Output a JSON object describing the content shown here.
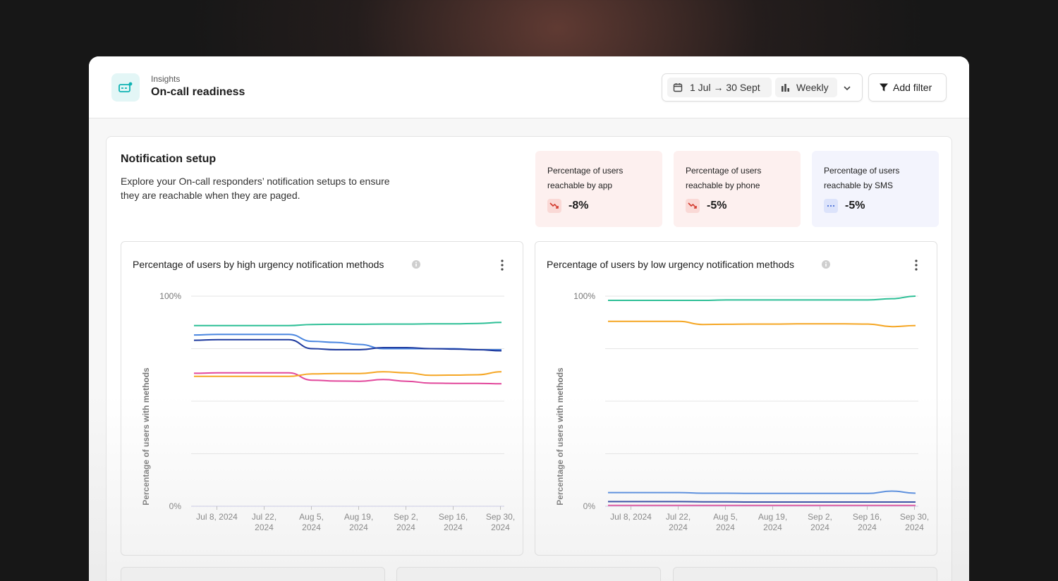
{
  "header": {
    "breadcrumb": "Insights",
    "title": "On-call readiness",
    "date_range": "1 Jul → 30 Sept",
    "granularity": "Weekly",
    "add_filter_label": "Add filter"
  },
  "section": {
    "title": "Notification setup",
    "description": "Explore your On-call responders’ notification setups to ensure they are reachable when they are paged."
  },
  "stats": [
    {
      "label_line1": "Percentage of users",
      "label_line2": "reachable by app",
      "value": "-8%",
      "trend": "down",
      "icon": "trend-down-icon"
    },
    {
      "label_line1": "Percentage of users",
      "label_line2": "reachable by phone",
      "value": "-5%",
      "trend": "down",
      "icon": "trend-down-icon"
    },
    {
      "label_line1": "Percentage of users",
      "label_line2": "reachable by SMS",
      "value": "-5%",
      "trend": "flat",
      "icon": "ellipsis-icon"
    }
  ],
  "colors": {
    "accent": "#14b8a6",
    "red_bg": "#fdf0ef",
    "blue_bg": "#f3f4fd"
  },
  "chart_data": [
    {
      "type": "line",
      "title": "Percentage of users by high urgency notification methods",
      "ylabel": "Percentage of users with methods",
      "xlabel": "",
      "y_ticks": [
        "100%",
        "0%"
      ],
      "ylim": [
        0,
        100
      ],
      "x_ticks": [
        [
          "Jul 8, 2024"
        ],
        [
          "Jul 22,",
          "2024"
        ],
        [
          "Aug 5,",
          "2024"
        ],
        [
          "Aug 19,",
          "2024"
        ],
        [
          "Sep 2,",
          "2024"
        ],
        [
          "Sep 16,",
          "2024"
        ],
        [
          "Sep 30,",
          "2024"
        ]
      ],
      "x": [
        1,
        8,
        15,
        22,
        29,
        36,
        43,
        50,
        57,
        64,
        71,
        78,
        85,
        92
      ],
      "grid": true,
      "series": [
        {
          "color": "#2dbf96",
          "values": [
            86,
            86,
            86,
            86,
            86,
            86.5,
            86.6,
            86.6,
            86.7,
            86.7,
            86.8,
            86.8,
            87,
            87.5
          ]
        },
        {
          "color": "#4a86e0",
          "values": [
            81.5,
            81.8,
            81.8,
            81.8,
            81.8,
            78.5,
            78,
            77,
            75,
            75,
            75,
            75,
            74.5,
            74.5
          ]
        },
        {
          "color": "#1e3a9e",
          "values": [
            79,
            79.3,
            79.3,
            79.3,
            79.3,
            75,
            74.5,
            74.5,
            75.5,
            75.5,
            75,
            74.8,
            74.5,
            74
          ]
        },
        {
          "color": "#e2489c",
          "values": [
            63.3,
            63.5,
            63.5,
            63.5,
            63.5,
            60,
            59.6,
            59.5,
            60.3,
            59.5,
            58.6,
            58.5,
            58.5,
            58.3
          ]
        },
        {
          "color": "#f5a623",
          "values": [
            61.8,
            61.8,
            61.8,
            61.8,
            61.8,
            63,
            63.2,
            63.2,
            64,
            63.5,
            62.3,
            62.4,
            62.6,
            64
          ]
        }
      ]
    },
    {
      "type": "line",
      "title": "Percentage of users by low urgency notification methods",
      "ylabel": "Percentage of users with methods",
      "xlabel": "",
      "y_ticks": [
        "100%",
        "0%"
      ],
      "ylim": [
        0,
        100
      ],
      "x_ticks": [
        [
          "Jul 8, 2024"
        ],
        [
          "Jul 22,",
          "2024"
        ],
        [
          "Aug 5,",
          "2024"
        ],
        [
          "Aug 19,",
          "2024"
        ],
        [
          "Sep 2,",
          "2024"
        ],
        [
          "Sep 16,",
          "2024"
        ],
        [
          "Sep 30,",
          "2024"
        ]
      ],
      "x": [
        1,
        8,
        15,
        22,
        29,
        36,
        43,
        50,
        57,
        64,
        71,
        78,
        85,
        92
      ],
      "grid": true,
      "series": [
        {
          "color": "#2dbf96",
          "values": [
            98,
            98,
            98,
            98,
            98,
            98.2,
            98.2,
            98.2,
            98.2,
            98.2,
            98.2,
            98.2,
            98.8,
            100
          ]
        },
        {
          "color": "#f5a623",
          "values": [
            88,
            88,
            88,
            88,
            86.5,
            86.6,
            86.7,
            86.7,
            86.8,
            86.8,
            86.8,
            86.7,
            85.5,
            86
          ]
        },
        {
          "color": "#4a86e0",
          "values": [
            6.5,
            6.5,
            6.5,
            6.5,
            6.2,
            6.2,
            6.1,
            6.1,
            6.1,
            6.1,
            6.1,
            6.1,
            7.2,
            6.2
          ]
        },
        {
          "color": "#1e3a9e",
          "values": [
            2.2,
            2.2,
            2.2,
            2.2,
            2.1,
            2.1,
            2,
            2,
            2,
            2,
            2,
            2,
            2,
            2
          ]
        },
        {
          "color": "#e2489c",
          "values": [
            0.4,
            0.4,
            0.4,
            0.4,
            0.4,
            0.4,
            0.4,
            0.4,
            0.4,
            0.4,
            0.4,
            0.4,
            0.4,
            0.4
          ]
        }
      ]
    }
  ]
}
